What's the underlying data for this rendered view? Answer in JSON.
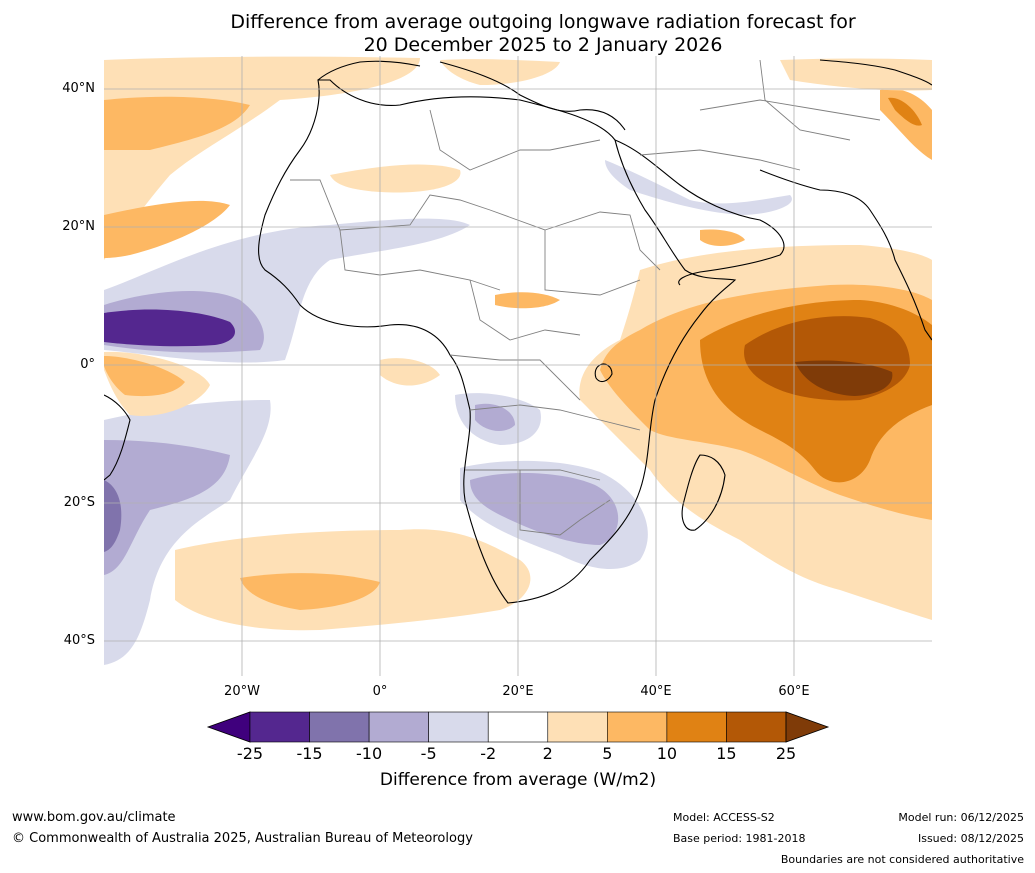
{
  "header": {
    "title_line1": "Difference from average outgoing longwave radiation forecast for",
    "title_line2": "20 December 2025 to 2 January 2026"
  },
  "map": {
    "lat_labels": [
      "40°N",
      "20°N",
      "0°",
      "20°S",
      "40°S"
    ],
    "lon_labels": [
      "20°W",
      "0°",
      "20°E",
      "40°E",
      "60°E"
    ]
  },
  "colorbar": {
    "ticks": [
      "-25",
      "-15",
      "-10",
      "-5",
      "-2",
      "2",
      "5",
      "10",
      "15",
      "25"
    ],
    "colors": [
      "#3f007d",
      "#54278f",
      "#8073ac",
      "#b2abd2",
      "#d8daeb",
      "#ffffff",
      "#fee0b6",
      "#fdb863",
      "#e08214",
      "#b35806",
      "#7f3b08"
    ],
    "label": "Difference from average (W/m2)"
  },
  "footer": {
    "website": "www.bom.gov.au/climate",
    "copyright": "© Commonwealth of Australia 2025, Australian Bureau of Meteorology",
    "model": "Model: ACCESS-S2",
    "base_period": "Base period: 1981-2018",
    "model_run": "Model run: 06/12/2025",
    "issued": "Issued: 08/12/2025",
    "disclaimer": "Boundaries are not considered authoritative"
  }
}
